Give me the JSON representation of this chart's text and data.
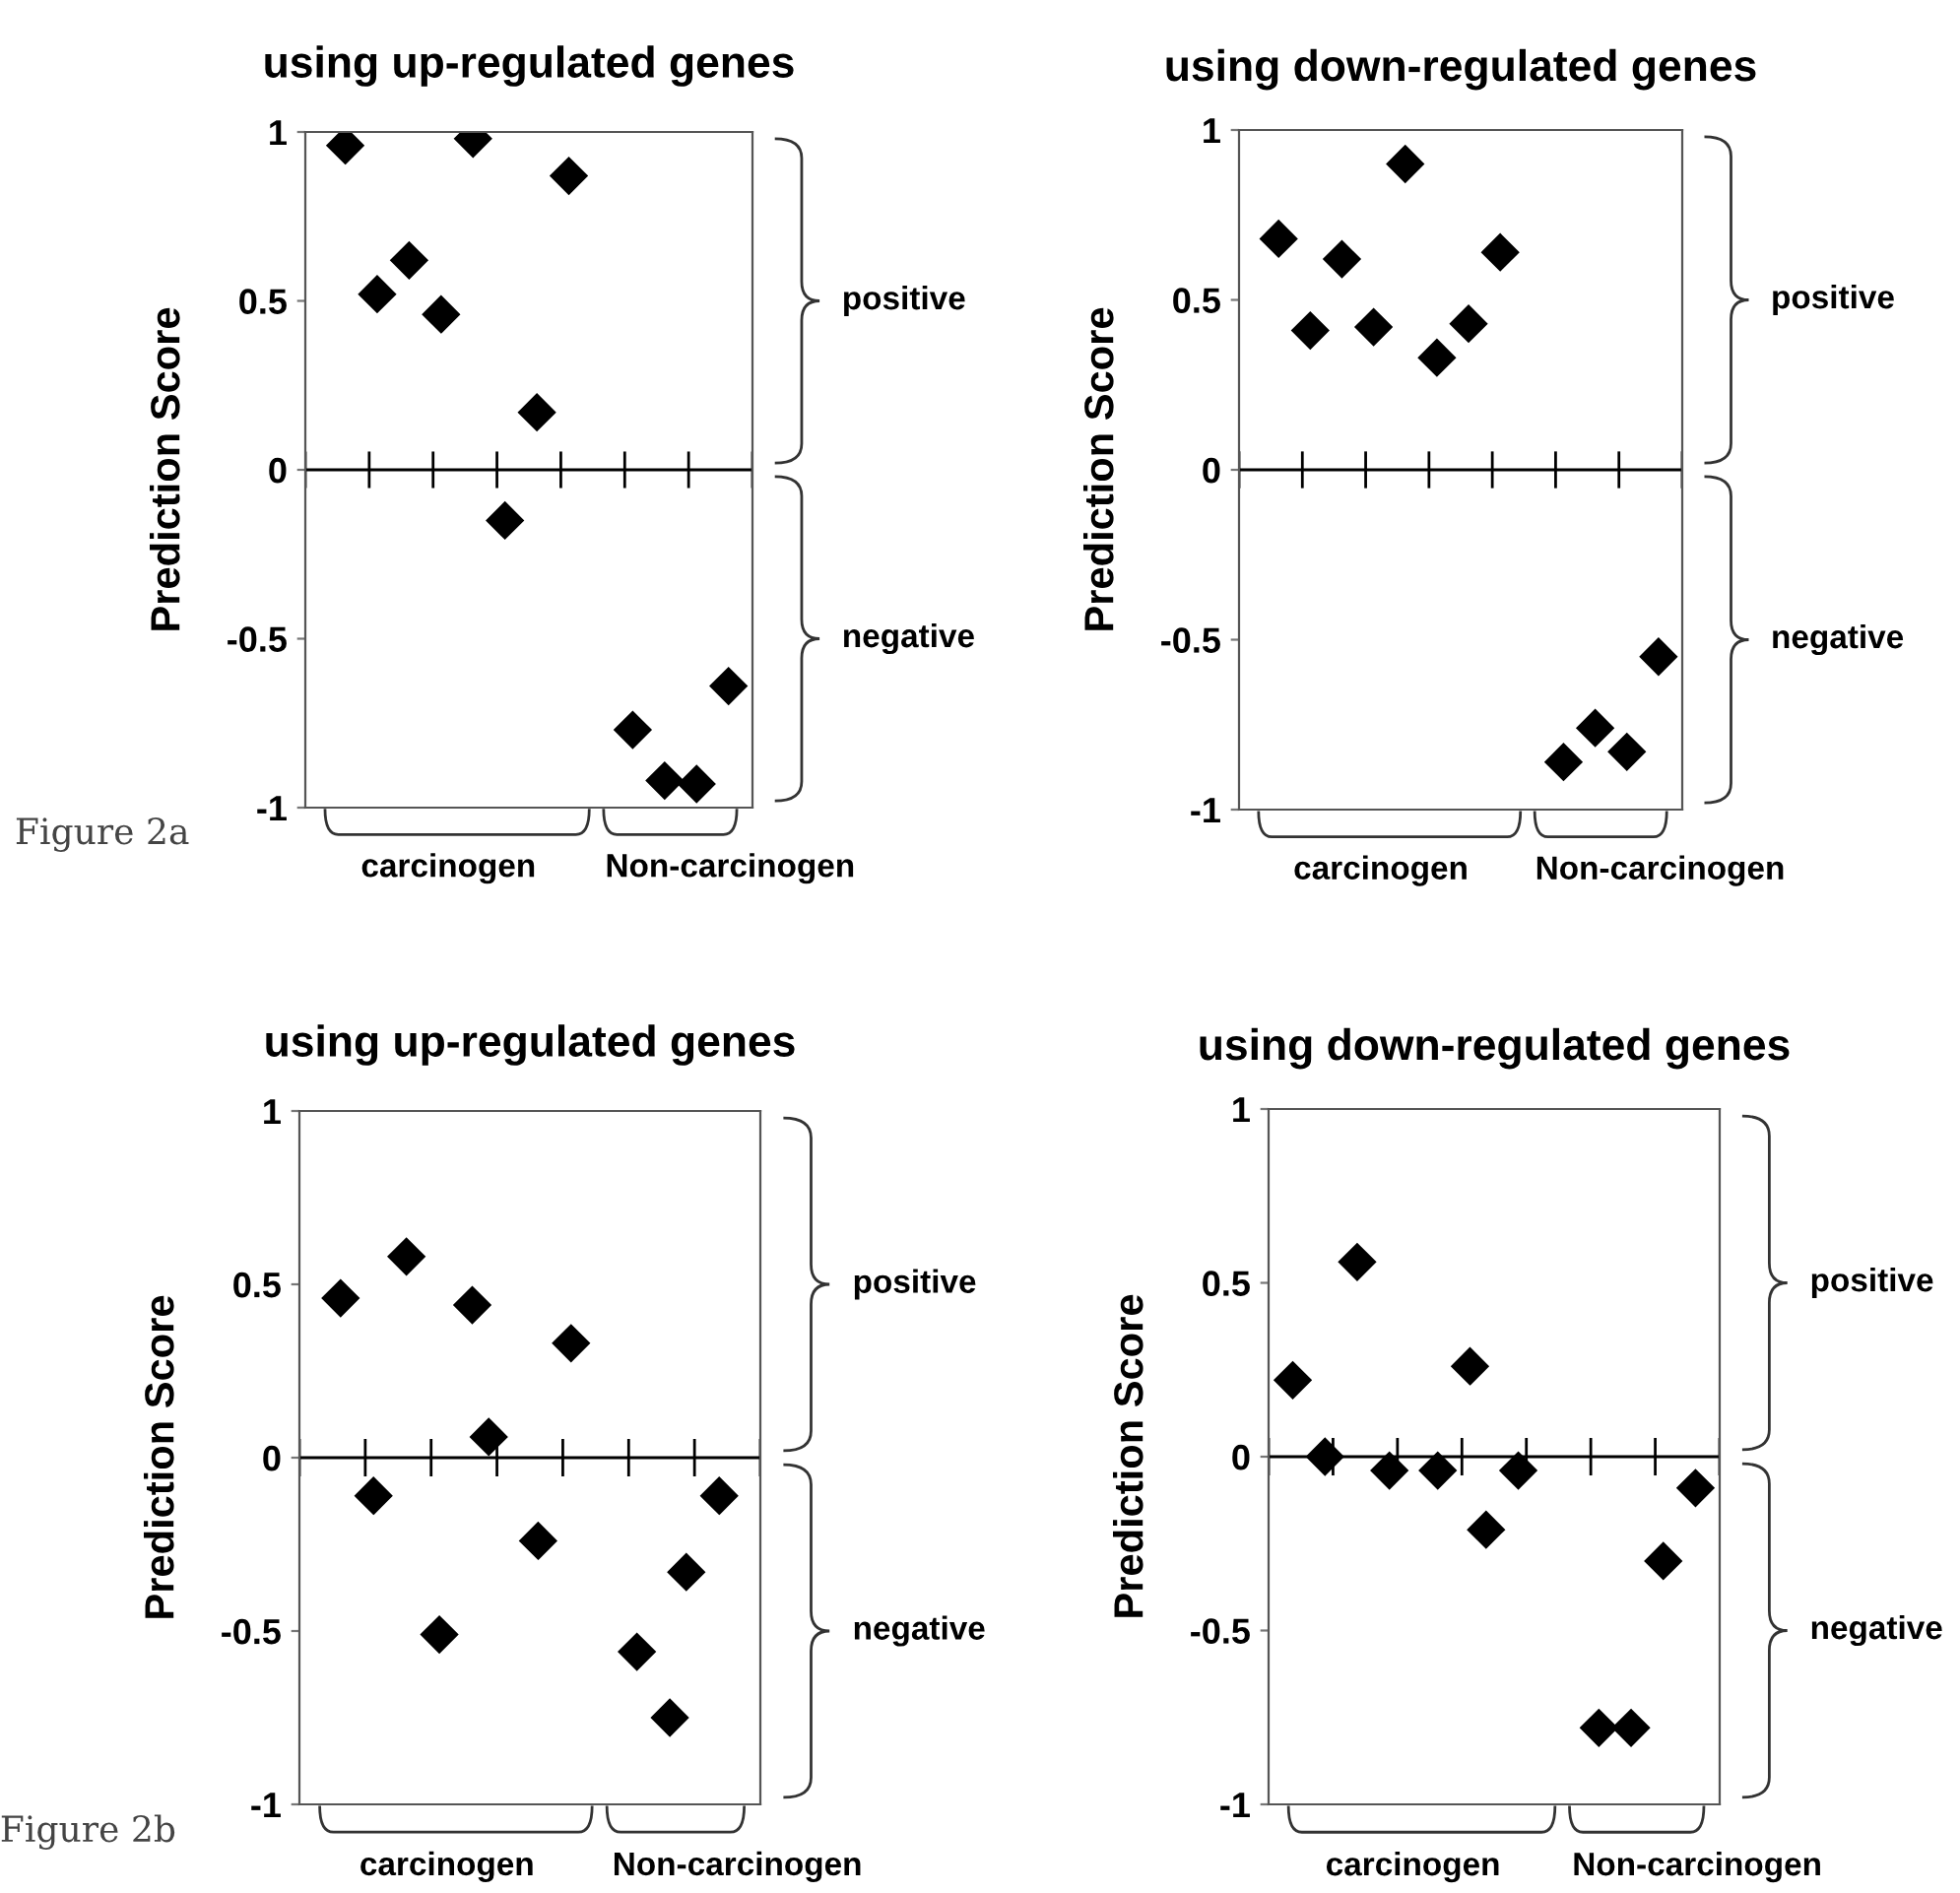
{
  "chart_data": [
    {
      "type": "scatter",
      "title": "using up-regulated genes",
      "ylabel": "Prediction Score",
      "marker": "diamond",
      "grid": false,
      "legend": false,
      "categories": [
        null,
        null,
        null,
        null,
        null,
        null,
        null,
        null,
        null,
        null,
        null,
        null,
        null,
        null,
        null,
        null,
        null,
        null,
        null,
        null,
        null,
        null,
        null,
        null,
        null,
        null,
        null,
        null
      ],
      "series": [
        {
          "color": "#000000",
          "values": [
            null,
            null,
            0.96,
            null,
            0.52,
            null,
            0.62,
            null,
            0.46,
            null,
            0.98,
            null,
            -0.15,
            null,
            0.17,
            null,
            0.87,
            null,
            null,
            null,
            -0.77,
            null,
            -0.92,
            null,
            -0.93,
            null,
            -0.64,
            null
          ]
        }
      ],
      "ylim": [
        -1,
        1
      ],
      "yticks": [
        -1,
        -0.5,
        0,
        0.5,
        1
      ],
      "ref_lines": [
        {
          "axis": "y",
          "value": 0
        }
      ],
      "annotations": [
        "carcinogen",
        "Non-carcinogen",
        "positive",
        "negative",
        "Figure 2a"
      ]
    },
    {
      "type": "scatter",
      "title": "using down-regulated genes",
      "ylabel": "Prediction Score",
      "marker": "diamond",
      "grid": false,
      "legend": false,
      "categories": [
        null,
        null,
        null,
        null,
        null,
        null,
        null,
        null,
        null,
        null,
        null,
        null,
        null,
        null,
        null,
        null,
        null,
        null,
        null,
        null,
        null,
        null,
        null,
        null,
        null,
        null,
        null,
        null
      ],
      "series": [
        {
          "color": "#000000",
          "values": [
            null,
            null,
            0.68,
            null,
            0.41,
            null,
            0.62,
            null,
            0.42,
            null,
            0.9,
            null,
            0.33,
            null,
            0.43,
            null,
            0.64,
            null,
            null,
            null,
            -0.86,
            null,
            -0.76,
            null,
            -0.83,
            null,
            -0.55,
            null
          ]
        }
      ],
      "ylim": [
        -1,
        1
      ],
      "yticks": [
        -1,
        -0.5,
        0,
        0.5,
        1
      ],
      "ref_lines": [
        {
          "axis": "y",
          "value": 0
        }
      ],
      "annotations": [
        "carcinogen",
        "Non-carcinogen",
        "positive",
        "negative"
      ]
    },
    {
      "type": "scatter",
      "title": "using up-regulated genes",
      "ylabel": "Prediction Score",
      "marker": "diamond",
      "grid": false,
      "legend": false,
      "categories": [
        null,
        null,
        null,
        null,
        null,
        null,
        null,
        null,
        null,
        null,
        null,
        null,
        null,
        null,
        null,
        null,
        null,
        null,
        null,
        null,
        null,
        null,
        null,
        null,
        null,
        null,
        null,
        null
      ],
      "series": [
        {
          "color": "#000000",
          "values": [
            null,
            null,
            0.46,
            null,
            -0.11,
            null,
            0.58,
            null,
            -0.51,
            null,
            0.44,
            0.06,
            null,
            null,
            -0.24,
            null,
            0.33,
            null,
            null,
            null,
            -0.56,
            null,
            -0.75,
            -0.33,
            null,
            -0.11,
            null,
            null
          ]
        }
      ],
      "ylim": [
        -1,
        1
      ],
      "yticks": [
        -1,
        -0.5,
        0,
        0.5,
        1
      ],
      "ref_lines": [
        {
          "axis": "y",
          "value": 0
        }
      ],
      "annotations": [
        "carcinogen",
        "Non-carcinogen",
        "positive",
        "negative",
        "Figure 2b"
      ]
    },
    {
      "type": "scatter",
      "title": "using down-regulated genes",
      "ylabel": "Prediction Score",
      "marker": "diamond",
      "grid": false,
      "legend": false,
      "categories": [
        null,
        null,
        null,
        null,
        null,
        null,
        null,
        null,
        null,
        null,
        null,
        null,
        null,
        null,
        null,
        null,
        null,
        null,
        null,
        null,
        null,
        null,
        null,
        null,
        null,
        null,
        null,
        null
      ],
      "series": [
        {
          "color": "#000000",
          "values": [
            null,
            0.22,
            null,
            0.0,
            null,
            0.56,
            null,
            -0.04,
            null,
            null,
            -0.04,
            null,
            0.26,
            -0.21,
            null,
            -0.04,
            null,
            null,
            null,
            null,
            -0.78,
            null,
            -0.78,
            null,
            -0.3,
            null,
            -0.09,
            null
          ]
        }
      ],
      "ylim": [
        -1,
        1
      ],
      "yticks": [
        -1,
        -0.5,
        0,
        0.5,
        1
      ],
      "ref_lines": [
        {
          "axis": "y",
          "value": 0
        }
      ],
      "annotations": [
        "carcinogen",
        "Non-carcinogen",
        "positive",
        "negative"
      ]
    }
  ]
}
